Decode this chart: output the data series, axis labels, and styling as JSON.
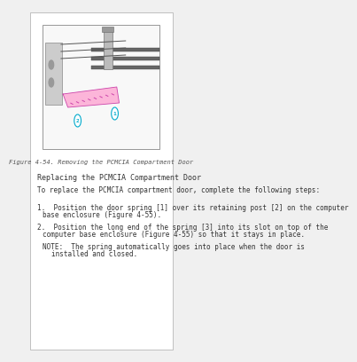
{
  "background_color": "#f0f0f0",
  "page_background": "#ffffff",
  "figure_caption": "Figure 4-54. Removing the PCMCIA Compartment Door",
  "section_title": "Replacing the PCMCIA Compartment Door",
  "intro_text": "To replace the PCMCIA compartment door, complete the following steps:",
  "steps": [
    "1.  Position the door spring [1] over its retaining post [2] on the computer\n     base enclosure (Figure 4-55).",
    "2.  Position the long end of the spring [3] into its slot on top of the\n     computer base enclosure (Figure 4-55) so that it stays in place."
  ],
  "note_label": "NOTE:",
  "note_text": "  The spring automatically goes into place when the door is\n        installed and closed.",
  "image_box_color": "#dddddd",
  "text_color": "#333333",
  "font_size": 5.5,
  "caption_font_size": 5.0,
  "title_font_size": 6.0
}
